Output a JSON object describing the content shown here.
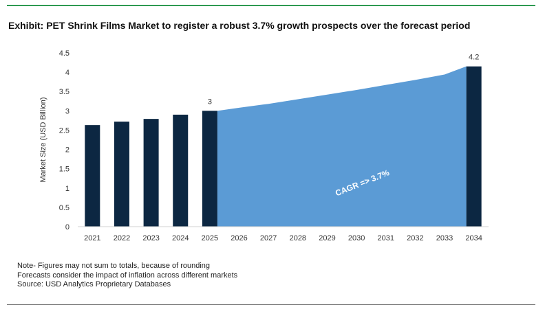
{
  "title": "Exhibit: PET Shrink Films Market to register a robust 3.7% growth prospects over the forecast period",
  "notes": [
    "Note- Figures may not sum to totals, because of rounding",
    "Forecasts consider the impact of inflation across different markets",
    "Source: USD Analytics Proprietary Databases"
  ],
  "colors": {
    "bar": "#0c2742",
    "area": "#5b9bd5",
    "rule_top": "#2e9a52",
    "rule_bottom": "#7a7a7a",
    "axis_text": "#333333"
  },
  "chart_data": {
    "type": "bar",
    "title": "",
    "xlabel": "",
    "ylabel": "Market Size (USD Billion)",
    "ylim": [
      0,
      4.5
    ],
    "yticks": [
      "0",
      "0.5",
      "1",
      "1.5",
      "2",
      "2.5",
      "3",
      "3.5",
      "4",
      "4.5"
    ],
    "categories": [
      "2021",
      "2022",
      "2023",
      "2024",
      "2025",
      "2026",
      "2027",
      "2028",
      "2029",
      "2030",
      "2031",
      "2032",
      "2033",
      "2034"
    ],
    "bars": [
      {
        "year": "2021",
        "value": 2.63
      },
      {
        "year": "2022",
        "value": 2.72
      },
      {
        "year": "2023",
        "value": 2.79
      },
      {
        "year": "2024",
        "value": 2.9
      },
      {
        "year": "2025",
        "value": 3.0,
        "label": "3"
      },
      {
        "year": "2034",
        "value": 4.15,
        "label": "4.2"
      }
    ],
    "area": {
      "from": "2025",
      "to": "2034",
      "values": [
        3.0,
        3.08,
        3.18,
        3.3,
        3.42,
        3.54,
        3.67,
        3.8,
        3.94,
        4.15
      ]
    },
    "annotation": "CAGR => 3.7%",
    "grid": false
  }
}
